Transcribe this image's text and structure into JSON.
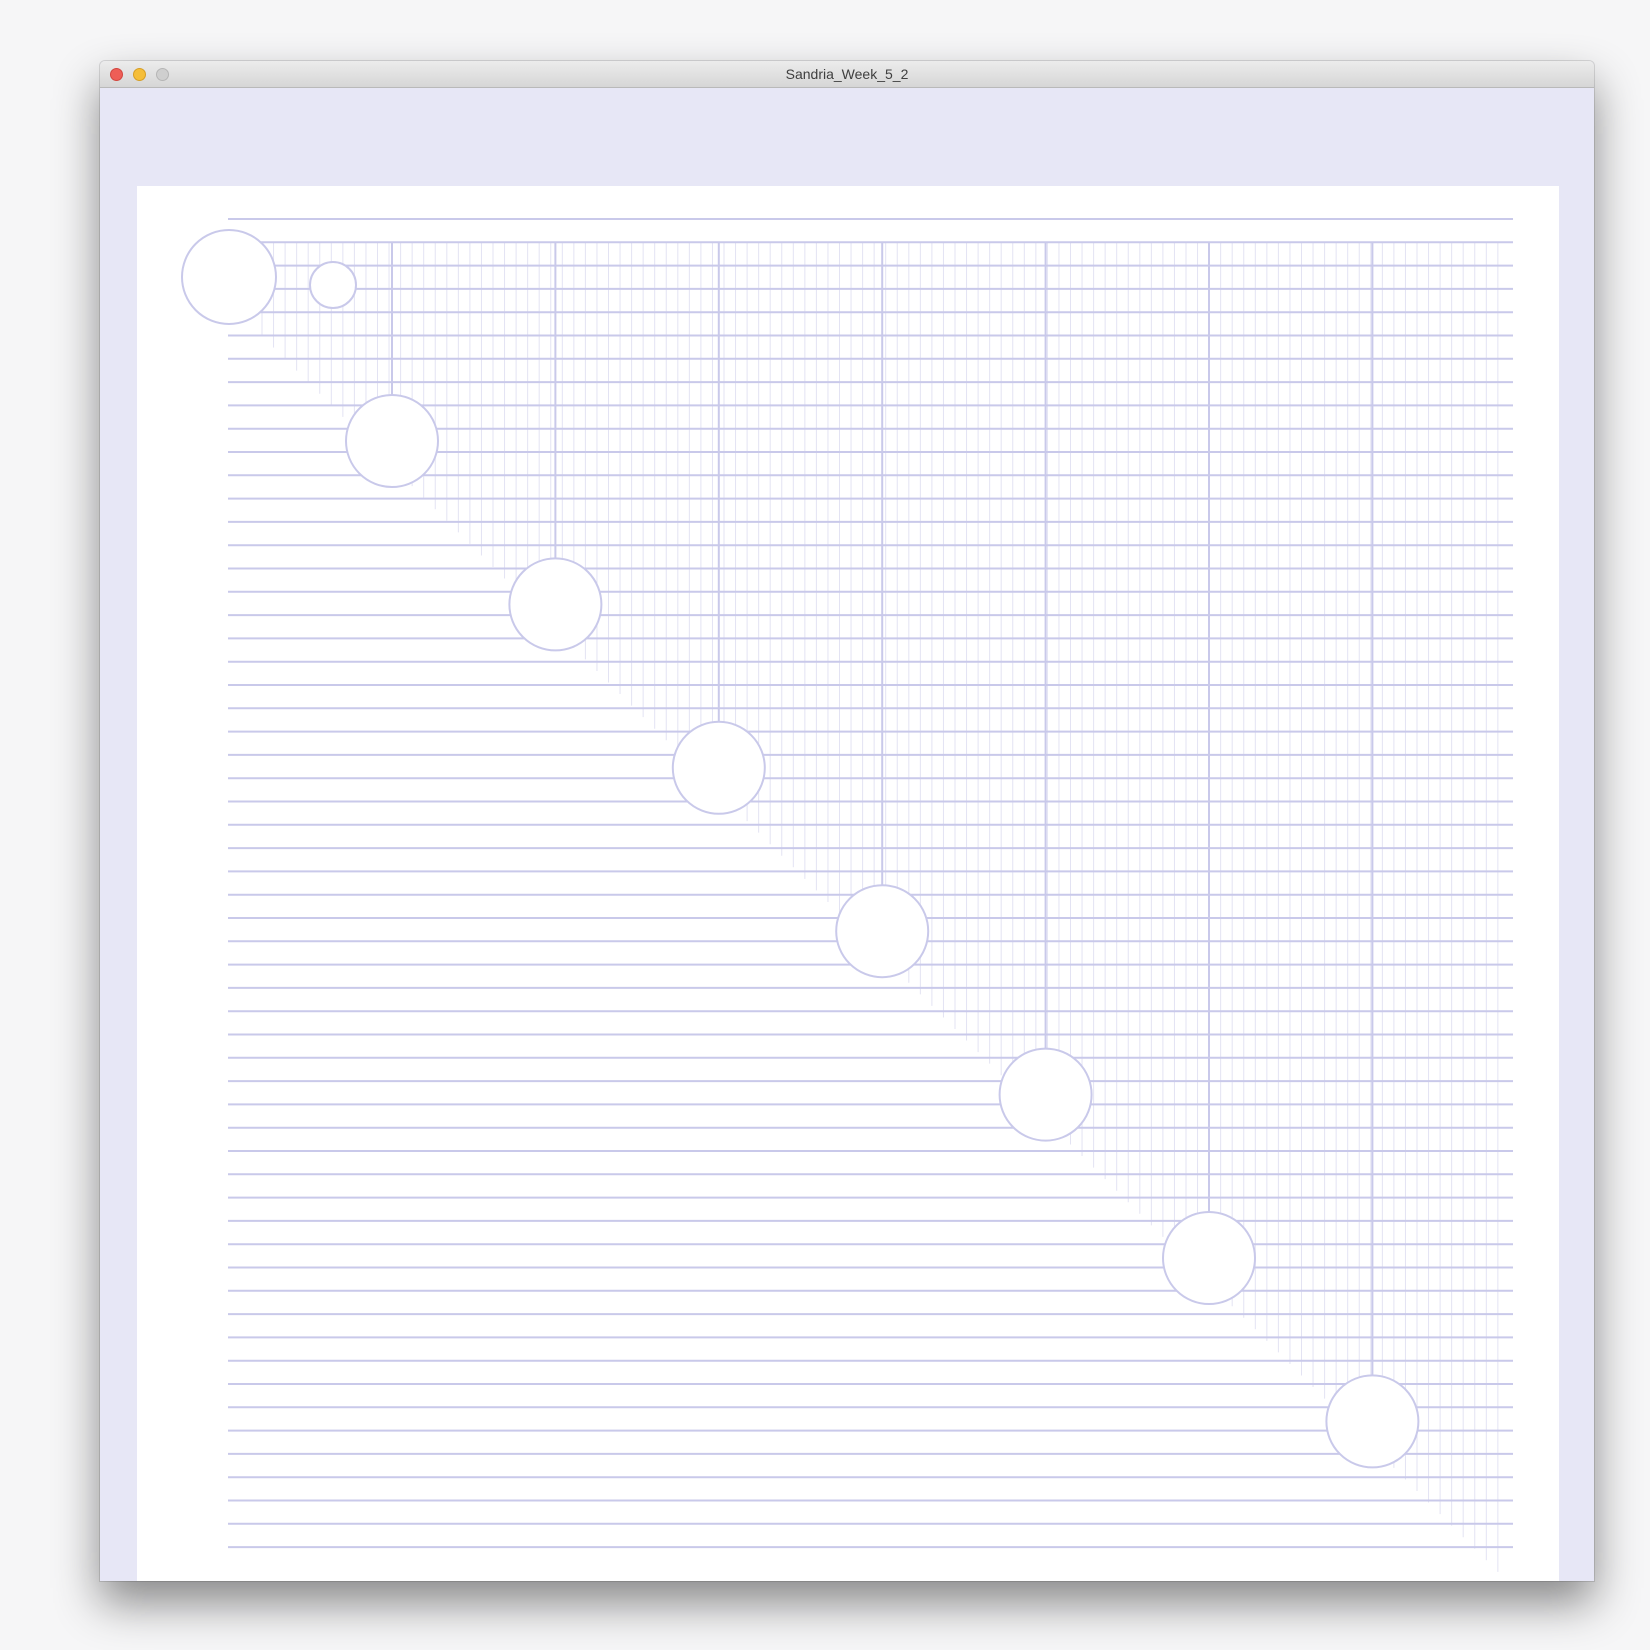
{
  "window": {
    "title": "Sandria_Week_5_2"
  },
  "sketch": {
    "background_color": "#e7e7f6",
    "canvas_color": "#ffffff",
    "line_color": "#c9c9ea",
    "faint_line_color": "#e3e3f3"
  }
}
